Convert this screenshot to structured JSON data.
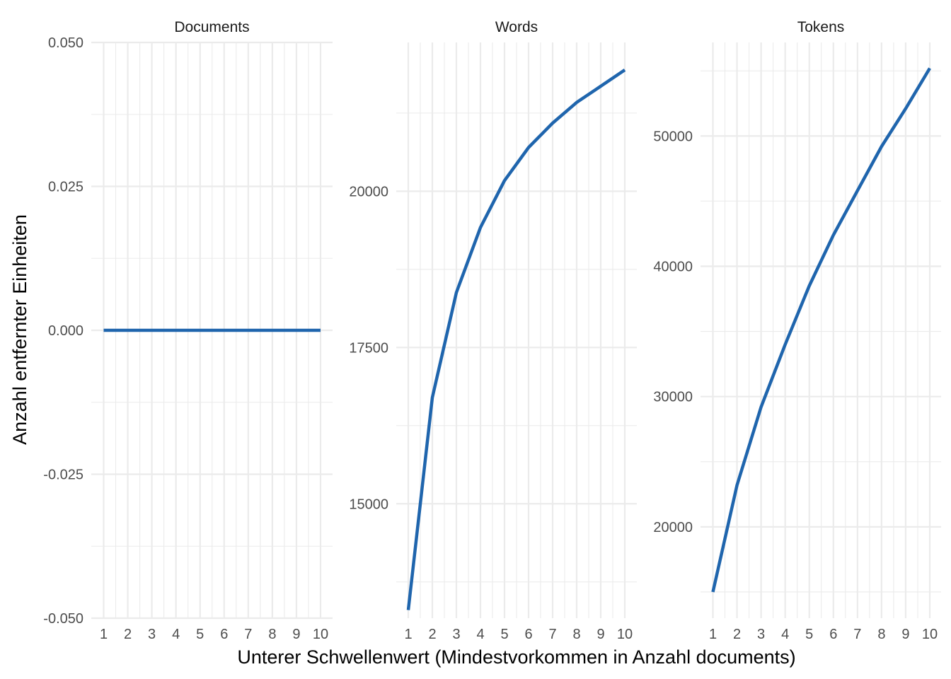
{
  "chart_data": {
    "type": "line",
    "xlabel": "Unterer Schwellenwert (Mindestvorkommen in Anzahl documents)",
    "ylabel": "Anzahl entfernter Einheiten",
    "x": [
      1,
      2,
      3,
      4,
      5,
      6,
      7,
      8,
      9,
      10
    ],
    "line_color": "#1f65ad",
    "grid": true,
    "facets": [
      {
        "title": "Documents",
        "values": [
          0,
          0,
          0,
          0,
          0,
          0,
          0,
          0,
          0,
          0
        ],
        "ylim": [
          -0.05,
          0.05
        ],
        "yticks": [
          -0.05,
          -0.025,
          0,
          0.025,
          0.05
        ],
        "ytick_labels": [
          "-0.050",
          "-0.025",
          "0.000",
          "0.025",
          "0.050"
        ]
      },
      {
        "title": "Words",
        "values": [
          13300,
          16700,
          18380,
          19420,
          20170,
          20700,
          21090,
          21420,
          21680,
          21940
        ],
        "ylim": [
          13170,
          22380
        ],
        "yticks": [
          15000,
          17500,
          20000
        ],
        "ytick_labels": [
          "15000",
          "17500",
          "20000"
        ]
      },
      {
        "title": "Tokens",
        "values": [
          15000,
          23200,
          29200,
          34000,
          38500,
          42400,
          45800,
          49200,
          52100,
          55200
        ],
        "ylim": [
          12990,
          57180
        ],
        "yticks": [
          20000,
          30000,
          40000,
          50000
        ],
        "ytick_labels": [
          "20000",
          "30000",
          "40000",
          "50000"
        ]
      }
    ]
  }
}
